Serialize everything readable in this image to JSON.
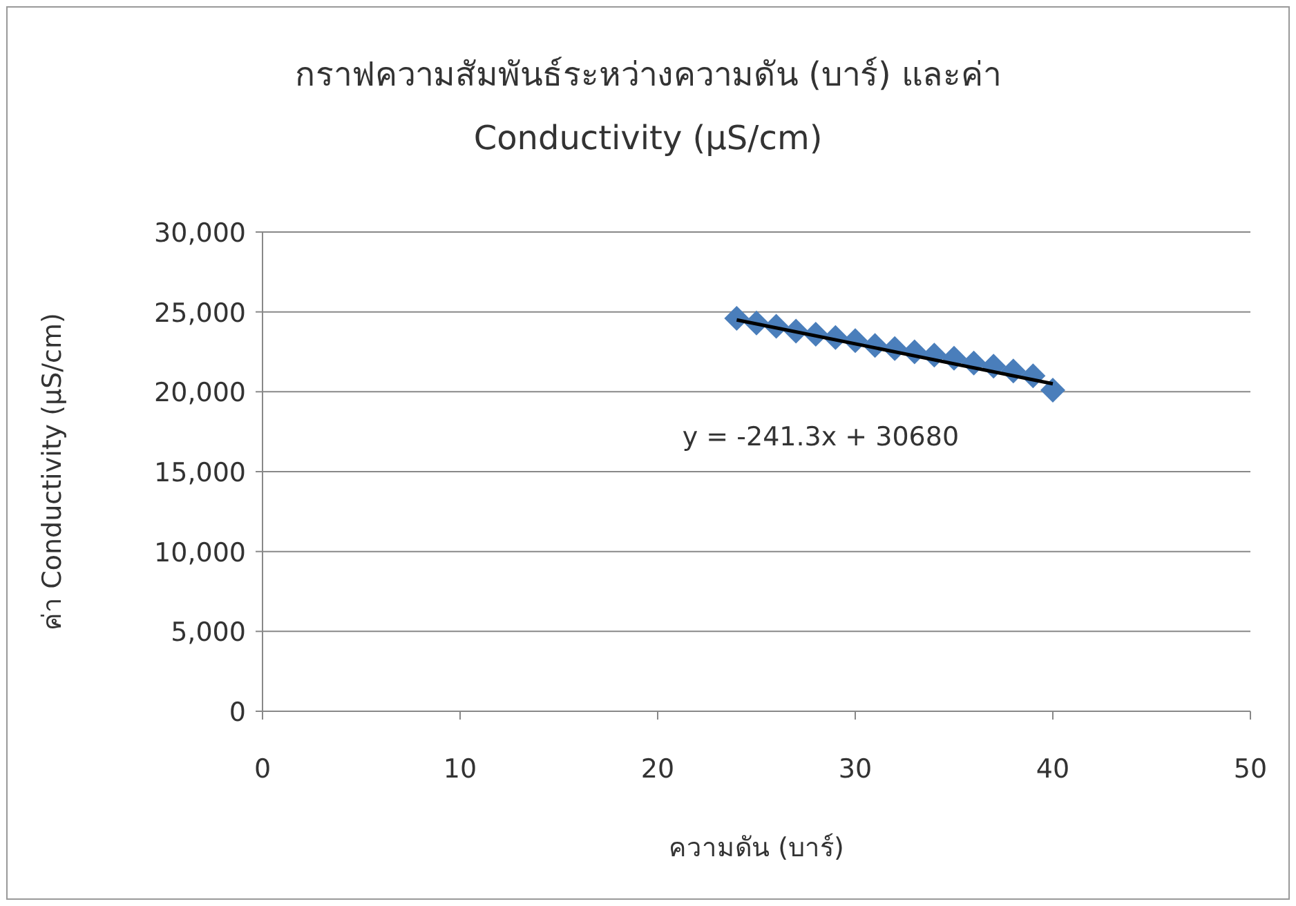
{
  "chart_data": {
    "type": "scatter",
    "title": "กราฟความสัมพันธ์ระหว่างความดัน (บาร์) และค่า Conductivity (µS/cm)",
    "xlabel": "ความดัน (บาร์)",
    "ylabel": "ค่า Conductivity (µS/cm)",
    "xlim": [
      0,
      50
    ],
    "ylim": [
      0,
      30000
    ],
    "xticks": [
      0,
      10,
      20,
      30,
      40,
      50
    ],
    "yticks": [
      0,
      {
        "value": 5000,
        "label": "5,000"
      },
      {
        "value": 10000,
        "label": "10,000"
      },
      {
        "value": 15000,
        "label": "15,000"
      },
      {
        "value": 20000,
        "label": "20,000"
      },
      {
        "value": 25000,
        "label": "25,000"
      },
      {
        "value": 30000,
        "label": "30,000"
      }
    ],
    "grid": "y",
    "marker": "diamond",
    "series": [
      {
        "type": "scatter",
        "color": "#4a7ebb",
        "x": [
          24,
          25,
          26,
          27,
          28,
          29,
          30,
          31,
          32,
          33,
          34,
          35,
          36,
          37,
          38,
          39,
          40
        ],
        "values": [
          24600,
          24300,
          24100,
          23800,
          23600,
          23400,
          23200,
          22900,
          22700,
          22500,
          22300,
          22100,
          21800,
          21600,
          21300,
          21000,
          20100
        ]
      },
      {
        "type": "line",
        "color": "#000000",
        "marker": "none",
        "x": [
          24,
          40
        ],
        "values": [
          24500,
          20500
        ]
      }
    ],
    "annotations": [
      "y = -241.3x + 30680"
    ]
  }
}
